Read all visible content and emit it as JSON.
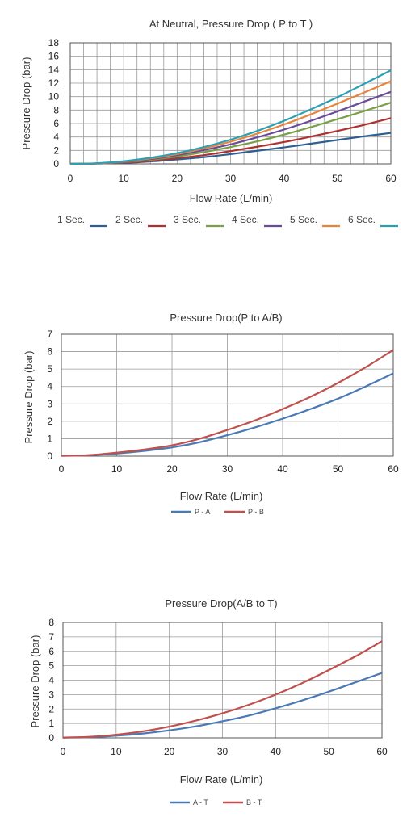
{
  "chart_data": [
    {
      "type": "line",
      "title": "At Neutral, Pressure Drop ( P to T )",
      "xlabel": "Flow Rate (L/min)",
      "ylabel": "Pressure Drop (bar)",
      "xlim": [
        0,
        60
      ],
      "ylim": [
        0,
        18
      ],
      "xticks": [
        0,
        10,
        20,
        30,
        40,
        50,
        60
      ],
      "yticks": [
        0,
        2,
        4,
        6,
        8,
        10,
        12,
        14,
        16,
        18
      ],
      "grid": true,
      "legend_position": "bottom",
      "x": [
        0,
        5,
        10,
        15,
        20,
        25,
        30,
        35,
        40,
        45,
        50,
        55,
        60
      ],
      "series": [
        {
          "name": "1 Sec.",
          "color": "#2e5f93",
          "values": [
            0,
            0.05,
            0.15,
            0.35,
            0.65,
            1.0,
            1.45,
            1.95,
            2.45,
            3.0,
            3.55,
            4.1,
            4.6
          ]
        },
        {
          "name": "2 Sec.",
          "color": "#b03030",
          "values": [
            0,
            0.05,
            0.2,
            0.45,
            0.85,
            1.3,
            1.9,
            2.55,
            3.25,
            4.05,
            4.9,
            5.8,
            6.8
          ]
        },
        {
          "name": "3 Sec.",
          "color": "#7aa045",
          "values": [
            0,
            0.06,
            0.25,
            0.6,
            1.1,
            1.75,
            2.5,
            3.35,
            4.35,
            5.45,
            6.65,
            7.85,
            9.1
          ]
        },
        {
          "name": "4 Sec.",
          "color": "#6a4a9a",
          "values": [
            0,
            0.07,
            0.3,
            0.7,
            1.3,
            2.05,
            2.9,
            3.95,
            5.1,
            6.4,
            7.8,
            9.25,
            10.7
          ]
        },
        {
          "name": "5 Sec.",
          "color": "#e8843a",
          "values": [
            0,
            0.08,
            0.35,
            0.8,
            1.45,
            2.3,
            3.3,
            4.5,
            5.85,
            7.35,
            8.95,
            10.6,
            12.3
          ]
        },
        {
          "name": "6 Sec.",
          "color": "#2aa0b5",
          "values": [
            0,
            0.1,
            0.4,
            0.9,
            1.6,
            2.5,
            3.6,
            4.9,
            6.4,
            8.1,
            9.9,
            11.9,
            13.9
          ]
        }
      ]
    },
    {
      "type": "line",
      "title": "Pressure Drop(P to A/B)",
      "xlabel": "Flow Rate (L/min)",
      "ylabel": "Pressure Drop (bar)",
      "xlim": [
        0,
        60
      ],
      "ylim": [
        0,
        7
      ],
      "xticks": [
        0,
        10,
        20,
        30,
        40,
        50,
        60
      ],
      "yticks": [
        0,
        1,
        2,
        3,
        4,
        5,
        6,
        7
      ],
      "grid": true,
      "legend_position": "bottom",
      "x": [
        0,
        5,
        10,
        15,
        20,
        25,
        30,
        35,
        40,
        45,
        50,
        55,
        60
      ],
      "series": [
        {
          "name": "P - A",
          "color": "#4a7ab5",
          "values": [
            0.02,
            0.05,
            0.15,
            0.3,
            0.5,
            0.8,
            1.2,
            1.65,
            2.15,
            2.7,
            3.3,
            4.0,
            4.75
          ]
        },
        {
          "name": "P - B",
          "color": "#c0504d",
          "values": [
            0.02,
            0.06,
            0.2,
            0.38,
            0.62,
            1.0,
            1.5,
            2.05,
            2.7,
            3.4,
            4.2,
            5.1,
            6.1
          ]
        }
      ]
    },
    {
      "type": "line",
      "title": "Pressure Drop(A/B to T)",
      "xlabel": "Flow Rate (L/min)",
      "ylabel": "Pressure Drop (bar)",
      "xlim": [
        0,
        60
      ],
      "ylim": [
        0,
        8
      ],
      "xticks": [
        0,
        10,
        20,
        30,
        40,
        50,
        60
      ],
      "yticks": [
        0,
        1,
        2,
        3,
        4,
        5,
        6,
        7,
        8
      ],
      "grid": true,
      "legend_position": "bottom",
      "x": [
        0,
        5,
        10,
        15,
        20,
        25,
        30,
        35,
        40,
        45,
        50,
        55,
        60
      ],
      "series": [
        {
          "name": "A - T",
          "color": "#4a7ab5",
          "values": [
            0.02,
            0.05,
            0.15,
            0.3,
            0.52,
            0.8,
            1.15,
            1.55,
            2.05,
            2.6,
            3.2,
            3.85,
            4.5
          ]
        },
        {
          "name": "B - T",
          "color": "#c0504d",
          "values": [
            0.02,
            0.07,
            0.22,
            0.45,
            0.78,
            1.2,
            1.7,
            2.3,
            3.0,
            3.8,
            4.7,
            5.65,
            6.7
          ]
        }
      ]
    }
  ]
}
